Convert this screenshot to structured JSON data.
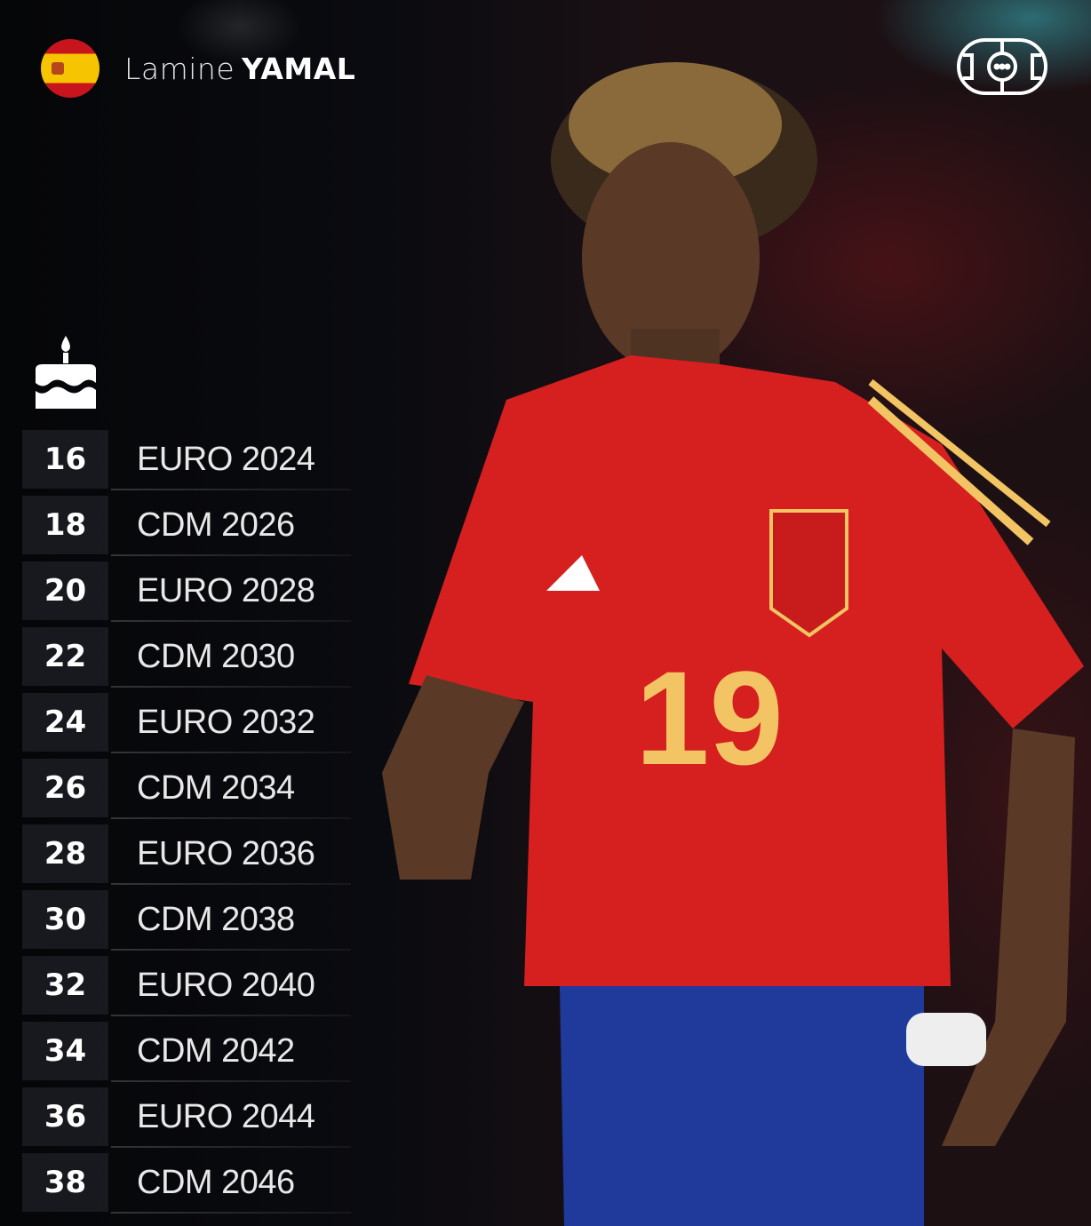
{
  "header": {
    "first_name": "Lamine",
    "last_name": "YAMAL",
    "flag_icon": "spain-flag"
  },
  "logo_icon": "football-pitch-logo",
  "cake_icon": "birthday-cake",
  "jersey_number": "19",
  "colors": {
    "jersey": "#d5201f",
    "shorts": "#1f3a9a",
    "accent": "#f2c463"
  },
  "tournaments": [
    {
      "age": "16",
      "event": "EURO 2024"
    },
    {
      "age": "18",
      "event": "CDM 2026"
    },
    {
      "age": "20",
      "event": "EURO 2028"
    },
    {
      "age": "22",
      "event": "CDM 2030"
    },
    {
      "age": "24",
      "event": "EURO 2032"
    },
    {
      "age": "26",
      "event": "CDM 2034"
    },
    {
      "age": "28",
      "event": "EURO 2036"
    },
    {
      "age": "30",
      "event": "CDM 2038"
    },
    {
      "age": "32",
      "event": "EURO 2040"
    },
    {
      "age": "34",
      "event": "CDM 2042"
    },
    {
      "age": "36",
      "event": "EURO 2044"
    },
    {
      "age": "38",
      "event": "CDM 2046"
    }
  ]
}
